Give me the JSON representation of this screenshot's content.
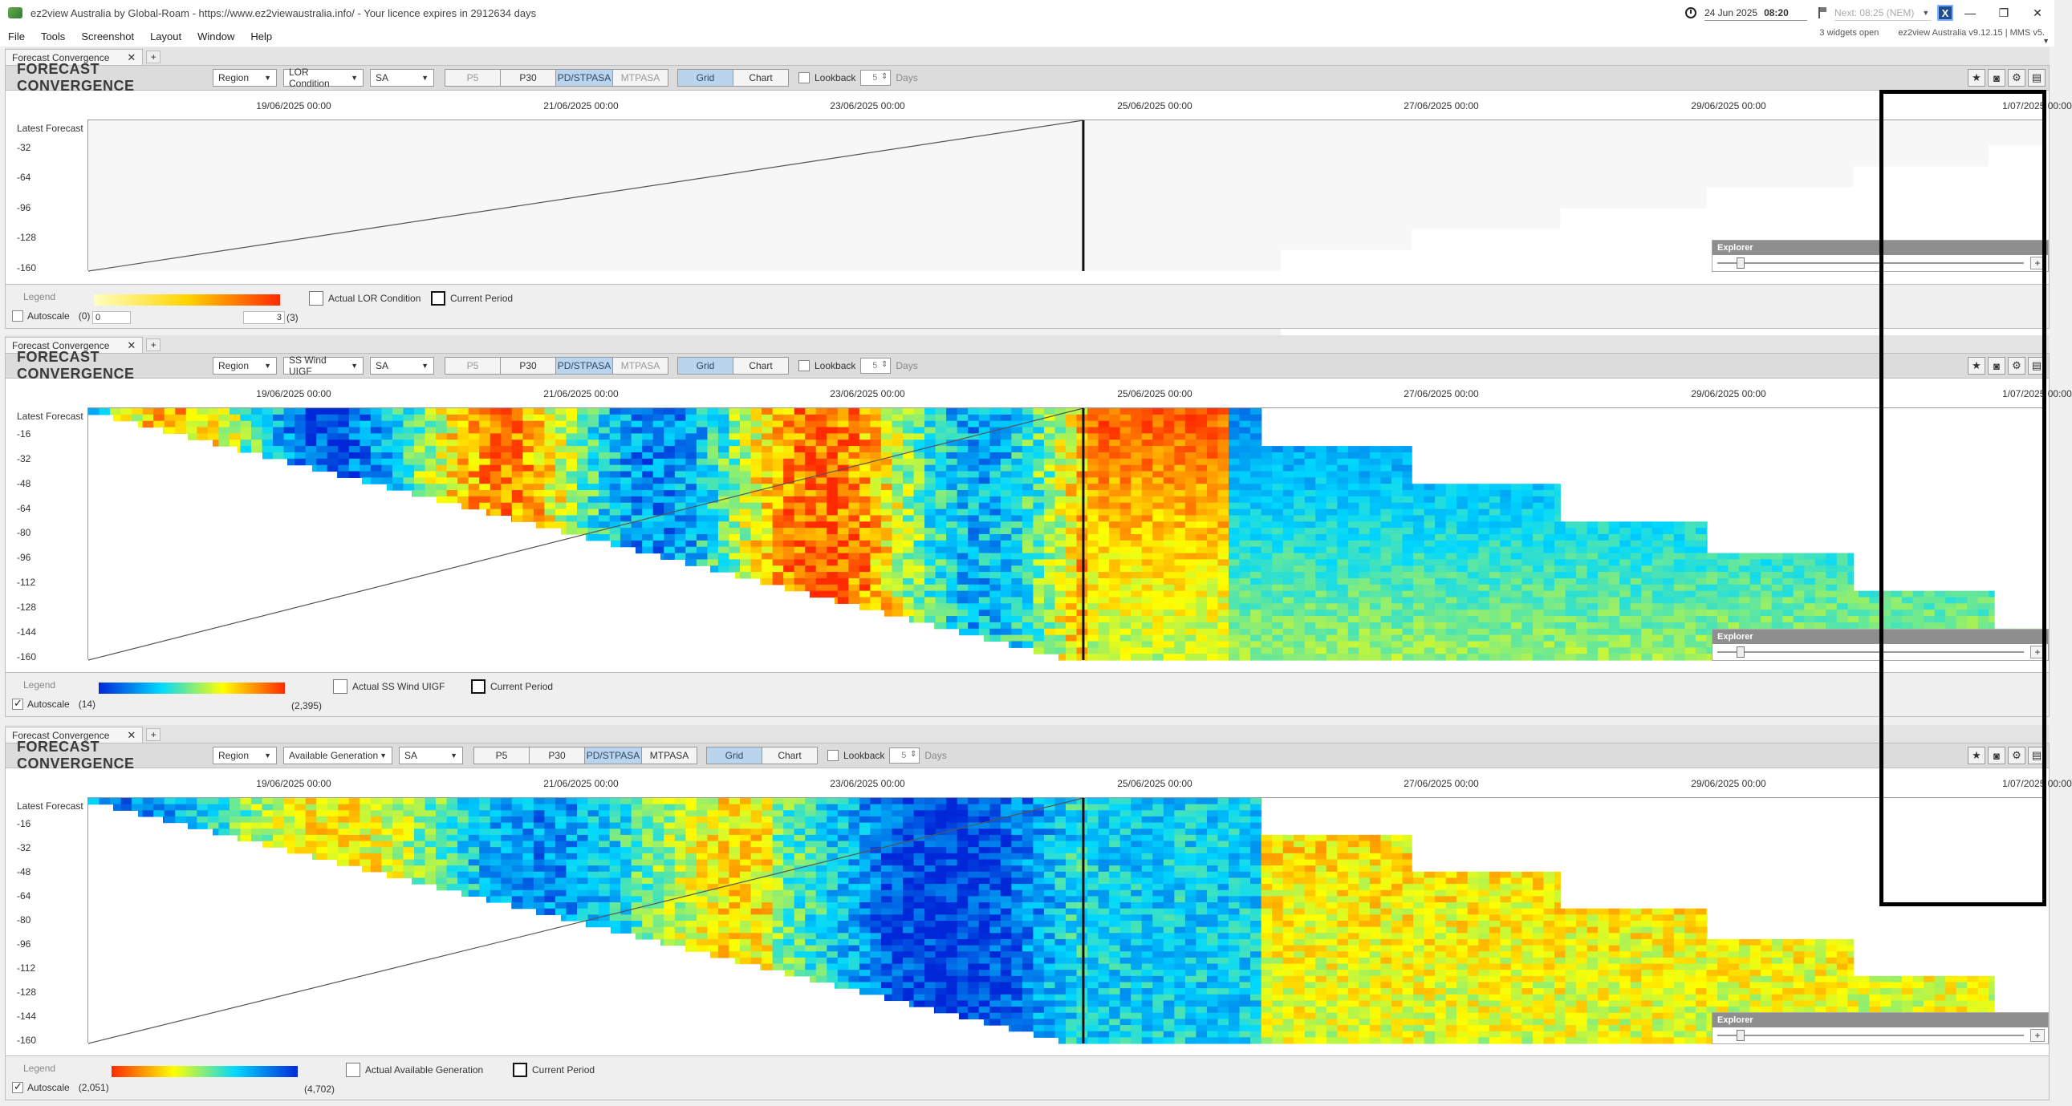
{
  "window": {
    "title": "ez2view Australia by Global-Roam - https://www.ez2viewaustralia.info/ - Your licence expires in 2912634 days",
    "date": "24 Jun 2025",
    "time": "08:20",
    "next": "Next: 08:25 (NEM)",
    "logo_letter": "X",
    "minimize": "—",
    "restore": "❐",
    "close": "✕"
  },
  "menu": {
    "items": [
      "File",
      "Tools",
      "Screenshot",
      "Layout",
      "Window",
      "Help"
    ],
    "widgets_open": "3 widgets open",
    "version": "ez2view Australia v9.12.15 | MMS v5."
  },
  "common": {
    "tab_label": "Forecast Convergence",
    "title": "FORECAST CONVERGENCE",
    "region_combo": "Region",
    "state": "SA",
    "btn_p5": "P5",
    "btn_p30": "P30",
    "btn_pdstpasa": "PD/STPASA",
    "btn_mtpasa": "MTPASA",
    "btn_grid": "Grid",
    "btn_chart": "Chart",
    "lookback": "Lookback",
    "lookback_days": "5",
    "days": "Days",
    "legend": "Legend",
    "autoscale": "Autoscale",
    "current_period": "Current Period",
    "explorer": "Explorer",
    "latest_forecast": "Latest Forecast",
    "x_ticks": [
      "19/06/2025 00:00",
      "21/06/2025 00:00",
      "23/06/2025 00:00",
      "25/06/2025 00:00",
      "27/06/2025 00:00",
      "29/06/2025 00:00",
      "1/07/2025 00:00"
    ],
    "y_ticks_short": [
      "-32",
      "-64",
      "-96",
      "-128",
      "-160"
    ],
    "y_ticks_full": [
      "-16",
      "-32",
      "-48",
      "-64",
      "-80",
      "-96",
      "-112",
      "-128",
      "-144",
      "-160"
    ],
    "icons": [
      "star-icon",
      "camera-icon",
      "settings-icon",
      "comment-icon"
    ]
  },
  "widgets": [
    {
      "metric": "LOR Condition",
      "legend_actual": "Actual LOR Condition",
      "min_label": "(0)",
      "max_label": "(3)",
      "min_input": "0",
      "max_input": "3",
      "autoscale_checked": false,
      "colors": [
        "#ffffc0",
        "#ffd400",
        "#ff2a00"
      ]
    },
    {
      "metric": "SS Wind UIGF",
      "legend_actual": "Actual SS Wind UIGF",
      "min_label": "(14)",
      "max_label": "(2,395)",
      "autoscale_checked": true,
      "colors": [
        "#0028d8",
        "#00d8ff",
        "#ffff00",
        "#ff2a00"
      ]
    },
    {
      "metric": "Available Generation",
      "legend_actual": "Actual Available Generation",
      "min_label": "(2,051)",
      "max_label": "(4,702)",
      "autoscale_checked": true,
      "colors": [
        "#ff2a00",
        "#ffff00",
        "#00d8ff",
        "#0028d8"
      ]
    }
  ]
}
